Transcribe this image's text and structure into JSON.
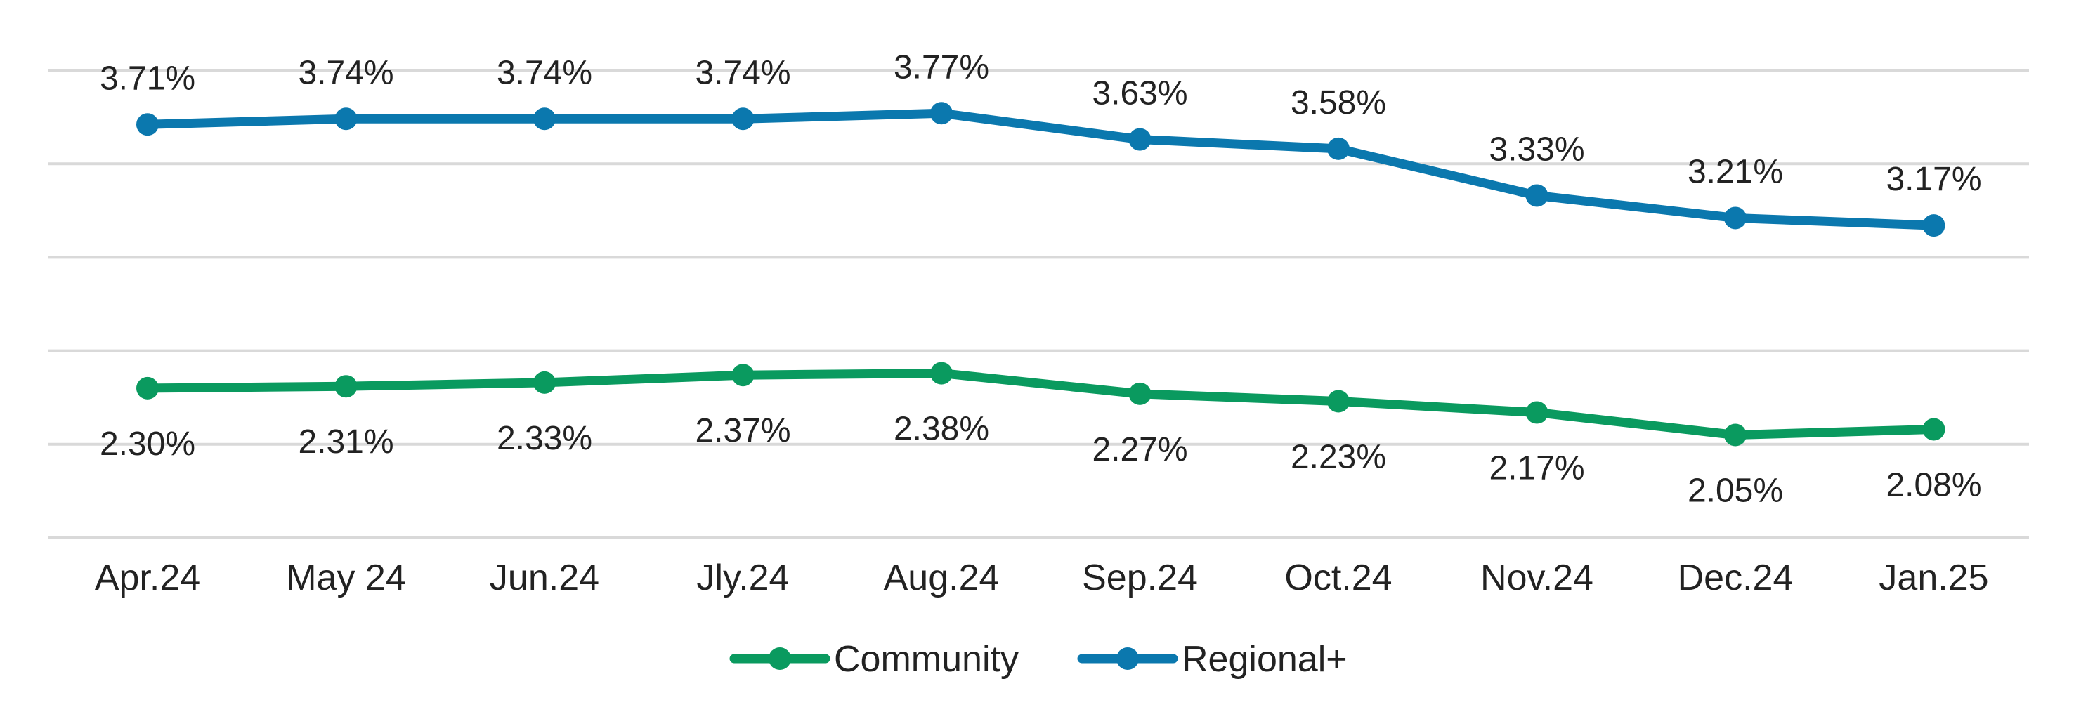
{
  "chart_data": {
    "type": "line",
    "title": "",
    "xlabel": "",
    "ylabel": "",
    "categories": [
      "Apr.24",
      "May 24",
      "Jun.24",
      "Jly.24",
      "Aug.24",
      "Sep.24",
      "Oct.24",
      "Nov.24",
      "Dec.24",
      "Jan.25"
    ],
    "series": [
      {
        "name": "Community",
        "color": "#0a9a5f",
        "values": [
          2.3,
          2.31,
          2.33,
          2.37,
          2.38,
          2.27,
          2.23,
          2.17,
          2.05,
          2.08
        ],
        "labels": [
          "2.30%",
          "2.31%",
          "2.33%",
          "2.37%",
          "2.38%",
          "2.27%",
          "2.23%",
          "2.17%",
          "2.05%",
          "2.08%"
        ],
        "label_position": "below"
      },
      {
        "name": "Regional+",
        "color": "#0b78ae",
        "values": [
          3.71,
          3.74,
          3.74,
          3.74,
          3.77,
          3.63,
          3.58,
          3.33,
          3.21,
          3.17
        ],
        "labels": [
          "3.71%",
          "3.74%",
          "3.74%",
          "3.74%",
          "3.77%",
          "3.63%",
          "3.58%",
          "3.33%",
          "3.21%",
          "3.17%"
        ],
        "label_position": "above"
      }
    ],
    "ylim": [
      1.5,
      4.0
    ],
    "gridlines": [
      1.5,
      2.0,
      2.5,
      3.0,
      3.5,
      4.0
    ],
    "grid": true,
    "y_axis_labels_shown": false,
    "legend": {
      "position": "bottom-center",
      "entries": [
        "Community",
        "Regional+"
      ]
    },
    "gridline_color": "#d9d9d9"
  }
}
